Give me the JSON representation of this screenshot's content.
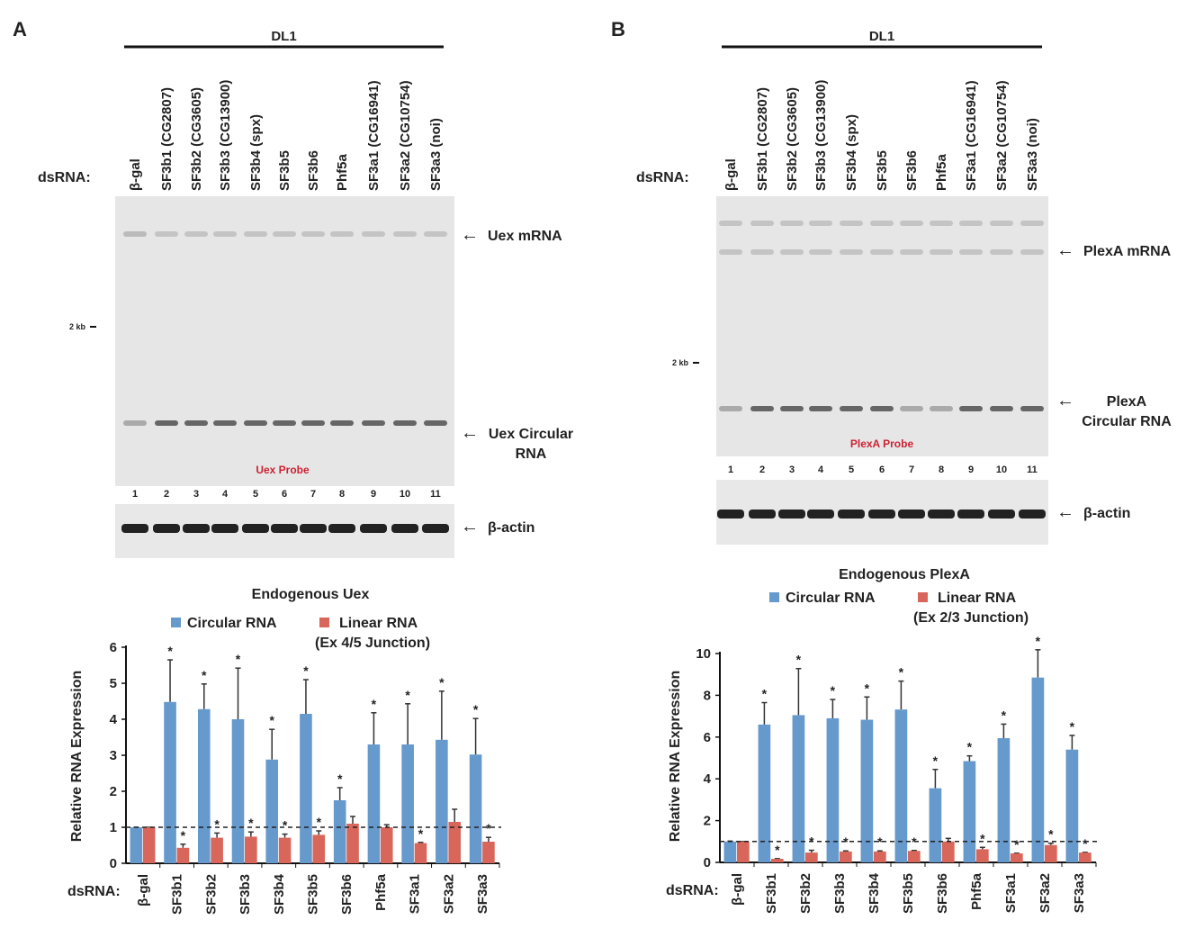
{
  "panels": [
    {
      "letter": "A",
      "cell_line": "DL1",
      "dsrna_label": "dsRNA:",
      "lanes": [
        "β-gal",
        "SF3b1 (CG2807)",
        "SF3b2 (CG3605)",
        "SF3b3 (CG13900)",
        "SF3b4 (spx)",
        "SF3b5",
        "SF3b6",
        "Phf5a",
        "SF3a1 (CG16941)",
        "SF3a2 (CG10754)",
        "SF3a3 (noi)"
      ],
      "lane_numbers": [
        "1",
        "2",
        "3",
        "4",
        "5",
        "6",
        "7",
        "8",
        "9",
        "10",
        "11"
      ],
      "marker": "2 kb",
      "probe": "Uex Probe",
      "arrows": [
        "Uex mRNA",
        "Uex Circular RNA",
        "β-actin"
      ]
    },
    {
      "letter": "B",
      "cell_line": "DL1",
      "dsrna_label": "dsRNA:",
      "lanes": [
        "β-gal",
        "SF3b1 (CG2807)",
        "SF3b2 (CG3605)",
        "SF3b3 (CG13900)",
        "SF3b4 (spx)",
        "SF3b5",
        "SF3b6",
        "Phf5a",
        "SF3a1 (CG16941)",
        "SF3a2 (CG10754)",
        "SF3a3 (noi)"
      ],
      "lane_numbers": [
        "1",
        "2",
        "3",
        "4",
        "5",
        "6",
        "7",
        "8",
        "9",
        "10",
        "11"
      ],
      "marker": "2 kb",
      "probe": "PlexA Probe",
      "arrows": [
        "PlexA mRNA",
        "PlexA Circular RNA",
        "β-actin"
      ]
    }
  ],
  "colors": {
    "circular": "#6699cc",
    "linear": "#d9665a",
    "probe_text": "#cc2233"
  },
  "chart_data": [
    {
      "type": "bar",
      "title": "Endogenous Uex",
      "ylabel": "Relative RNA Expression",
      "xlabel": "dsRNA:",
      "ylim": [
        0,
        6
      ],
      "yticks": [
        0,
        1,
        2,
        3,
        4,
        5,
        6
      ],
      "reference_line": 1,
      "categories": [
        "β-gal",
        "SF3b1",
        "SF3b2",
        "SF3b3",
        "SF3b4",
        "SF3b5",
        "SF3b6",
        "Phf5a",
        "SF3a1",
        "SF3a2",
        "SF3a3"
      ],
      "series": [
        {
          "name": "Circular RNA",
          "values": [
            1,
            4.48,
            4.28,
            4.0,
            2.88,
            4.15,
            1.75,
            3.3,
            3.3,
            3.43,
            3.02
          ],
          "error_top": [
            1,
            5.65,
            4.98,
            5.42,
            3.72,
            5.1,
            2.1,
            4.18,
            4.43,
            4.78,
            4.02
          ],
          "significant": [
            false,
            true,
            true,
            true,
            true,
            true,
            true,
            true,
            true,
            true,
            true
          ]
        },
        {
          "name": "Linear RNA",
          "name2": "(Ex 4/5 Junction)",
          "values": [
            1,
            0.43,
            0.71,
            0.74,
            0.71,
            0.79,
            1.1,
            1.0,
            0.56,
            1.15,
            0.6
          ],
          "error_top": [
            1,
            0.53,
            0.84,
            0.87,
            0.81,
            0.9,
            1.3,
            1.07,
            0.58,
            1.5,
            0.72
          ],
          "significant": [
            false,
            true,
            true,
            true,
            true,
            true,
            false,
            false,
            true,
            false,
            true
          ]
        }
      ]
    },
    {
      "type": "bar",
      "title": "Endogenous PlexA",
      "ylabel": "Relative RNA Expression",
      "xlabel": "dsRNA:",
      "ylim": [
        0,
        10.5
      ],
      "yticks": [
        0,
        2,
        4,
        6,
        8,
        10
      ],
      "reference_line": 1,
      "categories": [
        "β-gal",
        "SF3b1",
        "SF3b2",
        "SF3b3",
        "SF3b4",
        "SF3b5",
        "SF3b6",
        "Phf5a",
        "SF3a1",
        "SF3a2",
        "SF3a3"
      ],
      "series": [
        {
          "name": "Circular RNA",
          "values": [
            1,
            6.6,
            7.05,
            6.9,
            6.83,
            7.32,
            3.55,
            4.85,
            5.95,
            8.85,
            5.4
          ],
          "error_top": [
            1.02,
            7.65,
            9.28,
            7.8,
            7.92,
            8.68,
            4.45,
            5.1,
            6.62,
            10.18,
            6.08
          ],
          "significant": [
            false,
            true,
            true,
            true,
            true,
            true,
            true,
            true,
            true,
            true,
            true
          ]
        },
        {
          "name": "Linear RNA",
          "name2": "(Ex 2/3 Junction)",
          "values": [
            1,
            0.17,
            0.47,
            0.52,
            0.52,
            0.55,
            1.0,
            0.63,
            0.43,
            0.83,
            0.47
          ],
          "error_top": [
            1,
            0.18,
            0.58,
            0.55,
            0.55,
            0.57,
            1.15,
            0.72,
            0.44,
            0.92,
            0.48
          ],
          "significant": [
            false,
            true,
            true,
            true,
            true,
            true,
            false,
            true,
            true,
            true,
            true
          ]
        }
      ]
    }
  ]
}
